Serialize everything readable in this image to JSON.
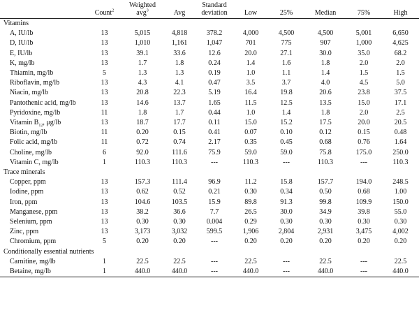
{
  "headers": {
    "count": "Count",
    "count_sup": "2",
    "weighted_line1": "Weighted",
    "weighted_line2": "avg",
    "weighted_sup": "3",
    "avg": "Avg",
    "sd_line1": "Standard",
    "sd_line2": "deviation",
    "low": "Low",
    "p25": "25%",
    "median": "Median",
    "p75": "75%",
    "high": "High"
  },
  "sections": [
    {
      "title": "Vitamins",
      "rows": [
        {
          "name": "A, IU/lb",
          "values": [
            "13",
            "5,015",
            "4,818",
            "378.2",
            "4,000",
            "4,500",
            "4,500",
            "5,001",
            "6,650"
          ]
        },
        {
          "name": "D, IU/lb",
          "values": [
            "13",
            "1,010",
            "1,161",
            "1,047",
            "701",
            "775",
            "907",
            "1,000",
            "4,625"
          ]
        },
        {
          "name": "E, IU/lb",
          "values": [
            "13",
            "39.1",
            "33.6",
            "12.6",
            "20.0",
            "27.1",
            "30.0",
            "35.0",
            "68.2"
          ]
        },
        {
          "name": "K, mg/lb",
          "values": [
            "13",
            "1.7",
            "1.8",
            "0.24",
            "1.4",
            "1.6",
            "1.8",
            "2.0",
            "2.0"
          ]
        },
        {
          "name": "Thiamin, mg/lb",
          "values": [
            "5",
            "1.3",
            "1.3",
            "0.19",
            "1.0",
            "1.1",
            "1.4",
            "1.5",
            "1.5"
          ]
        },
        {
          "name": "Riboflavin, mg/lb",
          "values": [
            "13",
            "4.3",
            "4.1",
            "0.47",
            "3.5",
            "3.7",
            "4.0",
            "4.5",
            "5.0"
          ]
        },
        {
          "name": "Niacin, mg/lb",
          "values": [
            "13",
            "20.8",
            "22.3",
            "5.19",
            "16.4",
            "19.8",
            "20.6",
            "23.8",
            "37.5"
          ]
        },
        {
          "name": "Pantothenic acid, mg/lb",
          "values": [
            "13",
            "14.6",
            "13.7",
            "1.65",
            "11.5",
            "12.5",
            "13.5",
            "15.0",
            "17.1"
          ]
        },
        {
          "name": "Pyridoxine, mg/lb",
          "values": [
            "11",
            "1.8",
            "1.7",
            "0.44",
            "1.0",
            "1.4",
            "1.8",
            "2.0",
            "2.5"
          ]
        },
        {
          "name": "Vitamin B",
          "name_sub": "12",
          "name_suffix": ", μg/lb",
          "values": [
            "13",
            "18.7",
            "17.7",
            "0.11",
            "15.0",
            "15.2",
            "17.5",
            "20.0",
            "20.5"
          ]
        },
        {
          "name": "Biotin, mg/lb",
          "values": [
            "11",
            "0.20",
            "0.15",
            "0.41",
            "0.07",
            "0.10",
            "0.12",
            "0.15",
            "0.48"
          ]
        },
        {
          "name": "Folic acid, mg/lb",
          "values": [
            "11",
            "0.72",
            "0.74",
            "2.17",
            "0.35",
            "0.45",
            "0.68",
            "0.76",
            "1.64"
          ]
        },
        {
          "name": "Choline, mg/lb",
          "values": [
            "6",
            "92.0",
            "111.6",
            "75.9",
            "59.0",
            "59.0",
            "75.8",
            "175.0",
            "250.0"
          ]
        },
        {
          "name": "Vitamin C, mg/lb",
          "values": [
            "1",
            "110.3",
            "110.3",
            "---",
            "110.3",
            "---",
            "110.3",
            "---",
            "110.3"
          ]
        }
      ]
    },
    {
      "title": "Trace minerals",
      "rows": [
        {
          "name": "Copper, ppm",
          "values": [
            "13",
            "157.3",
            "111.4",
            "96.9",
            "11.2",
            "15.8",
            "157.7",
            "194.0",
            "248.5"
          ]
        },
        {
          "name": "Iodine, ppm",
          "values": [
            "13",
            "0.62",
            "0.52",
            "0.21",
            "0.30",
            "0.34",
            "0.50",
            "0.68",
            "1.00"
          ]
        },
        {
          "name": "Iron, ppm",
          "values": [
            "13",
            "104.6",
            "103.5",
            "15.9",
            "89.8",
            "91.3",
            "99.8",
            "109.9",
            "150.0"
          ]
        },
        {
          "name": "Manganese, ppm",
          "values": [
            "13",
            "38.2",
            "36.6",
            "7.7",
            "26.5",
            "30.0",
            "34.9",
            "39.8",
            "55.0"
          ]
        },
        {
          "name": "Selenium, ppm",
          "values": [
            "13",
            "0.30",
            "0.30",
            "0.004",
            "0.29",
            "0.30",
            "0.30",
            "0.30",
            "0.30"
          ]
        },
        {
          "name": "Zinc, ppm",
          "values": [
            "13",
            "3,173",
            "3,032",
            "599.5",
            "1,906",
            "2,804",
            "2,931",
            "3,475",
            "4,002"
          ]
        },
        {
          "name": "Chromium, ppm",
          "values": [
            "5",
            "0.20",
            "0.20",
            "---",
            "0.20",
            "0.20",
            "0.20",
            "0.20",
            "0.20"
          ]
        }
      ]
    },
    {
      "title": "Conditionally essential nutrients",
      "rows": [
        {
          "name": "Carnitine, mg/lb",
          "values": [
            "1",
            "22.5",
            "22.5",
            "---",
            "22.5",
            "---",
            "22.5",
            "---",
            "22.5"
          ]
        },
        {
          "name": "Betaine, mg/lb",
          "values": [
            "1",
            "440.0",
            "440.0",
            "---",
            "440.0",
            "---",
            "440.0",
            "---",
            "440.0"
          ]
        }
      ]
    }
  ]
}
